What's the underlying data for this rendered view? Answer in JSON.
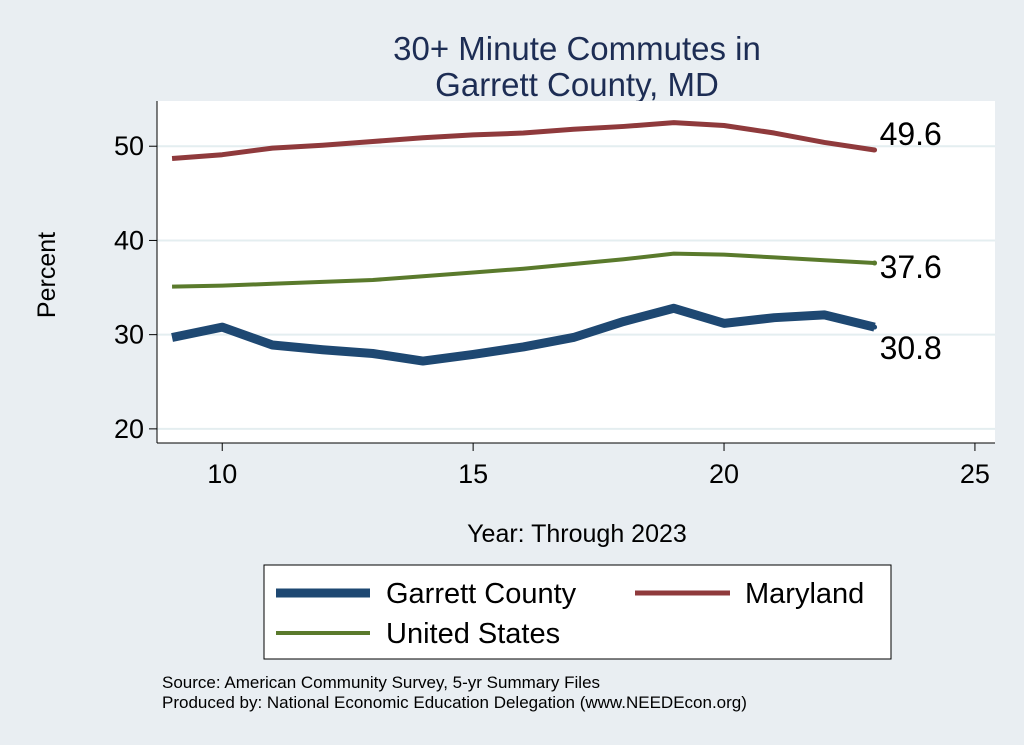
{
  "chart_data": {
    "type": "line",
    "title_lines": [
      "30+ Minute Commutes in",
      "Garrett County, MD"
    ],
    "xlabel": "Year: Through 2023",
    "ylabel": "Percent",
    "xlim": [
      8.7,
      25.4
    ],
    "ylim": [
      18.5,
      54.8
    ],
    "xticks": [
      10,
      15,
      20,
      25
    ],
    "yticks": [
      20,
      30,
      40,
      50
    ],
    "grid": true,
    "legend_position": "bottom",
    "x": [
      9,
      10,
      11,
      12,
      13,
      14,
      15,
      16,
      17,
      18,
      19,
      20,
      21,
      22,
      23
    ],
    "series": [
      {
        "name": "Garrett County",
        "color": "#1e4872",
        "values": [
          29.7,
          30.8,
          28.9,
          28.4,
          28.0,
          27.2,
          27.9,
          28.7,
          29.7,
          31.4,
          32.8,
          31.2,
          31.8,
          32.1,
          30.8
        ],
        "end_label": "30.8"
      },
      {
        "name": "Maryland",
        "color": "#8f3a3c",
        "values": [
          48.7,
          49.1,
          49.8,
          50.1,
          50.5,
          50.9,
          51.2,
          51.4,
          51.8,
          52.1,
          52.5,
          52.2,
          51.4,
          50.4,
          49.6
        ],
        "end_label": "49.6"
      },
      {
        "name": "United States",
        "color": "#5a7a2c",
        "values": [
          35.1,
          35.2,
          35.4,
          35.6,
          35.8,
          36.2,
          36.6,
          37.0,
          37.5,
          38.0,
          38.6,
          38.5,
          38.2,
          37.9,
          37.6
        ],
        "end_label": "37.6"
      }
    ]
  },
  "source_lines": [
    "Source: American Community Survey, 5-yr Summary Files",
    "Produced by: National Economic Education Delegation (www.NEEDEcon.org)"
  ]
}
